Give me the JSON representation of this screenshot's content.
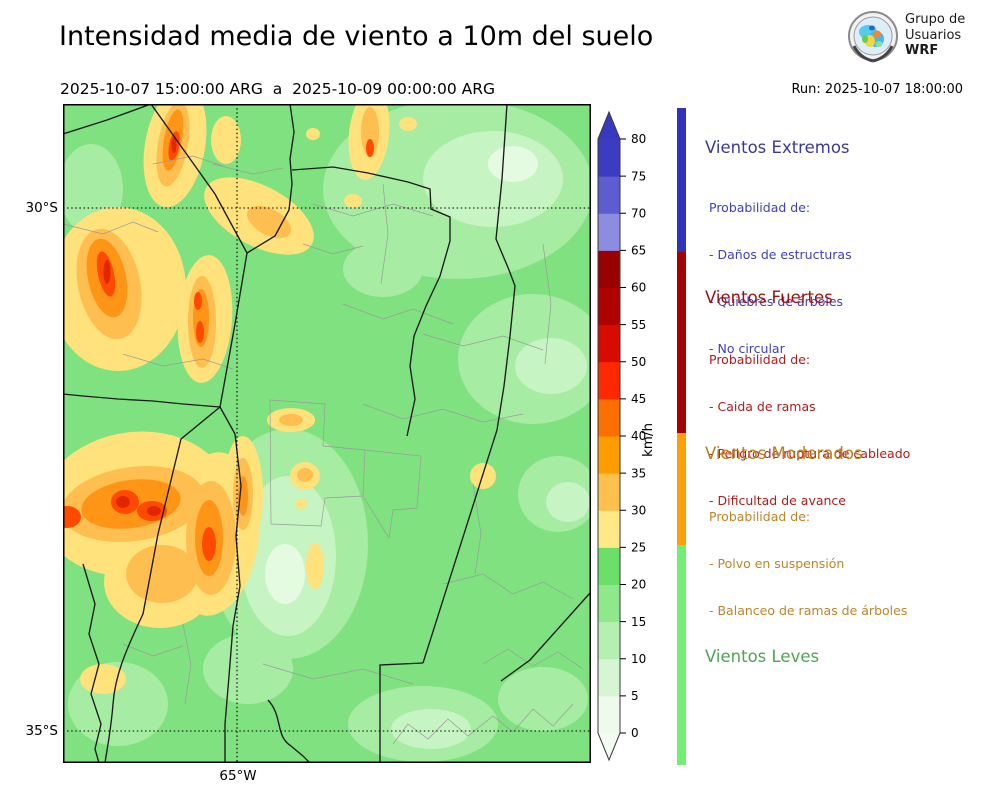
{
  "header": {
    "title": "Intensidad media de viento a 10m del suelo",
    "period": "2025-10-07 15:00:00 ARG  a  2025-10-09 00:00:00 ARG",
    "run_label": "Run: 2025-10-07 18:00:00",
    "logo": {
      "line1": "Grupo de",
      "line2": "Usuarios",
      "line3": "WRF"
    }
  },
  "map": {
    "lat_labels": [
      "30°S",
      "35°S"
    ],
    "lon_label": "65°W"
  },
  "colorbar": {
    "unit": "km/h",
    "tick_values": [
      0,
      5,
      10,
      15,
      20,
      25,
      30,
      35,
      40,
      45,
      50,
      55,
      60,
      65,
      70,
      75,
      80
    ],
    "segment_colors_bottom_to_top": [
      "#eefbec",
      "#d6f6d3",
      "#b5efb2",
      "#8fe88c",
      "#6bdf69",
      "#ffe886",
      "#ffc04d",
      "#ff9c00",
      "#ff6f00",
      "#ff2800",
      "#d80b00",
      "#b00000",
      "#990000",
      "#8c8ce0",
      "#5d5dd0",
      "#3c3cc2"
    ],
    "under_arrow_color": "#f2fcf1",
    "over_arrow_color": "#3939c0"
  },
  "legend": {
    "sections": [
      {
        "title": "Vientos Extremos",
        "title_color": "#39399b",
        "text_color": "#3f3fc3",
        "bar_color": "#3232bb",
        "intro": "Probabilidad de:",
        "items": [
          "- Daños de estructuras",
          "- Quiebres de árboles",
          "- No circular"
        ]
      },
      {
        "title": "Vientos Fuertes",
        "title_color": "#9e1010",
        "text_color": "#b51a1a",
        "bar_color": "#a50303",
        "intro": "Probabilidad de:",
        "items": [
          "- Caida de ramas",
          "- Peligro de ruptura de cableado",
          "- Dificultad de avance"
        ]
      },
      {
        "title": "Vientos Moderados",
        "title_color": "#bc7d1e",
        "text_color": "#c08427",
        "bar_color": "#ffa006",
        "intro": "Probabilidad de:",
        "items": [
          "- Polvo en suspensión",
          "- Balanceo de ramas de árboles"
        ]
      },
      {
        "title": "Vientos Leves",
        "title_color": "#4fa455",
        "text_color": "#4fa455",
        "bar_color": "#72ef72",
        "intro": "",
        "items": []
      }
    ]
  }
}
